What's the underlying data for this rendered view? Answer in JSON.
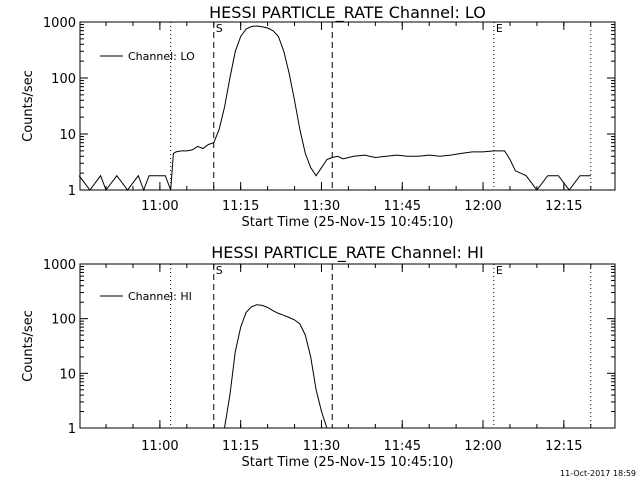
{
  "timestamp": "11-Oct-2017 18:59",
  "chart_data": [
    {
      "type": "line",
      "title": "HESSI PARTICLE_RATE Channel: LO",
      "xlabel": "Start Time (25-Nov-15 10:45:10)",
      "ylabel": "Counts/sec",
      "yscale": "log",
      "ylim": [
        1,
        1000
      ],
      "y_ticks": [
        "1",
        "10",
        "100",
        "1000"
      ],
      "xlim": [
        "10:45:10",
        "12:24:30"
      ],
      "x_ticks": [
        "11:00",
        "11:15",
        "11:30",
        "11:45",
        "12:00",
        "12:15"
      ],
      "legend": {
        "placement": "top-left",
        "entries": [
          "Channel: LO"
        ]
      },
      "markers": [
        {
          "time": "11:02",
          "style": "dotted",
          "label": ""
        },
        {
          "time": "11:10",
          "style": "dashed",
          "label": "S"
        },
        {
          "time": "11:32",
          "style": "dashed",
          "label": ""
        },
        {
          "time": "12:02",
          "style": "dotted",
          "label": "E"
        },
        {
          "time": "12:20",
          "style": "dotted",
          "label": ""
        }
      ],
      "series": [
        {
          "x": [
            "10:45",
            "10:47",
            "10:49",
            "10:50",
            "10:52",
            "10:54",
            "10:56",
            "10:57",
            "10:58",
            "10:59",
            "11:00",
            "11:01",
            "11:02",
            "11:02.5",
            "11:03",
            "11:04",
            "11:05",
            "11:06",
            "11:07",
            "11:08",
            "11:09",
            "11:10",
            "11:11",
            "11:12",
            "11:13",
            "11:14",
            "11:15",
            "11:16",
            "11:17",
            "11:18",
            "11:19",
            "11:20",
            "11:21",
            "11:22",
            "11:23",
            "11:24",
            "11:25",
            "11:26",
            "11:27",
            "11:28",
            "11:29",
            "11:30",
            "11:31",
            "11:32",
            "11:33",
            "11:34",
            "11:36",
            "11:38",
            "11:40",
            "11:42",
            "11:44",
            "11:46",
            "11:48",
            "11:50",
            "11:52",
            "11:54",
            "11:56",
            "11:58",
            "12:00",
            "12:02",
            "12:04",
            "12:05",
            "12:06",
            "12:08",
            "12:10",
            "12:12",
            "12:14",
            "12:16",
            "12:18",
            "12:20"
          ],
          "y": [
            1.8,
            1.0,
            1.8,
            1.0,
            1.8,
            1.0,
            1.8,
            1.0,
            1.8,
            1.8,
            1.8,
            1.8,
            1.0,
            4.5,
            4.8,
            5.0,
            5.0,
            5.2,
            6.0,
            5.5,
            6.5,
            7.0,
            12,
            30,
            100,
            300,
            550,
            750,
            830,
            850,
            820,
            780,
            700,
            550,
            300,
            120,
            40,
            12,
            4.5,
            2.5,
            1.8,
            2.5,
            3.5,
            3.8,
            4.0,
            3.6,
            4.0,
            4.2,
            3.8,
            4.0,
            4.2,
            4.0,
            4.0,
            4.2,
            4.0,
            4.2,
            4.5,
            4.8,
            4.8,
            5.0,
            5.0,
            3.5,
            2.2,
            1.8,
            1.0,
            1.8,
            1.8,
            1.0,
            1.8,
            1.8
          ]
        }
      ]
    },
    {
      "type": "line",
      "title": "HESSI PARTICLE_RATE Channel: HI",
      "xlabel": "Start Time (25-Nov-15 10:45:10)",
      "ylabel": "Counts/sec",
      "yscale": "log",
      "ylim": [
        1,
        1000
      ],
      "y_ticks": [
        "1",
        "10",
        "100",
        "1000"
      ],
      "xlim": [
        "10:45:10",
        "12:24:30"
      ],
      "x_ticks": [
        "11:00",
        "11:15",
        "11:30",
        "11:45",
        "12:00",
        "12:15"
      ],
      "legend": {
        "placement": "top-left",
        "entries": [
          "Channel: HI"
        ]
      },
      "markers": [
        {
          "time": "11:02",
          "style": "dotted",
          "label": ""
        },
        {
          "time": "11:10",
          "style": "dashed",
          "label": "S"
        },
        {
          "time": "11:32",
          "style": "dashed",
          "label": ""
        },
        {
          "time": "12:02",
          "style": "dotted",
          "label": "E"
        },
        {
          "time": "12:20",
          "style": "dotted",
          "label": ""
        }
      ],
      "series": [
        {
          "x": [
            "11:12",
            "11:13",
            "11:14",
            "11:15",
            "11:16",
            "11:17",
            "11:18",
            "11:19",
            "11:20",
            "11:21",
            "11:22",
            "11:23",
            "11:24",
            "11:25",
            "11:26",
            "11:27",
            "11:28",
            "11:29",
            "11:30",
            "11:31"
          ],
          "y": [
            1.0,
            4.0,
            25,
            70,
            130,
            165,
            180,
            175,
            160,
            140,
            125,
            115,
            105,
            95,
            80,
            50,
            20,
            5,
            2,
            1.0
          ]
        }
      ]
    }
  ]
}
